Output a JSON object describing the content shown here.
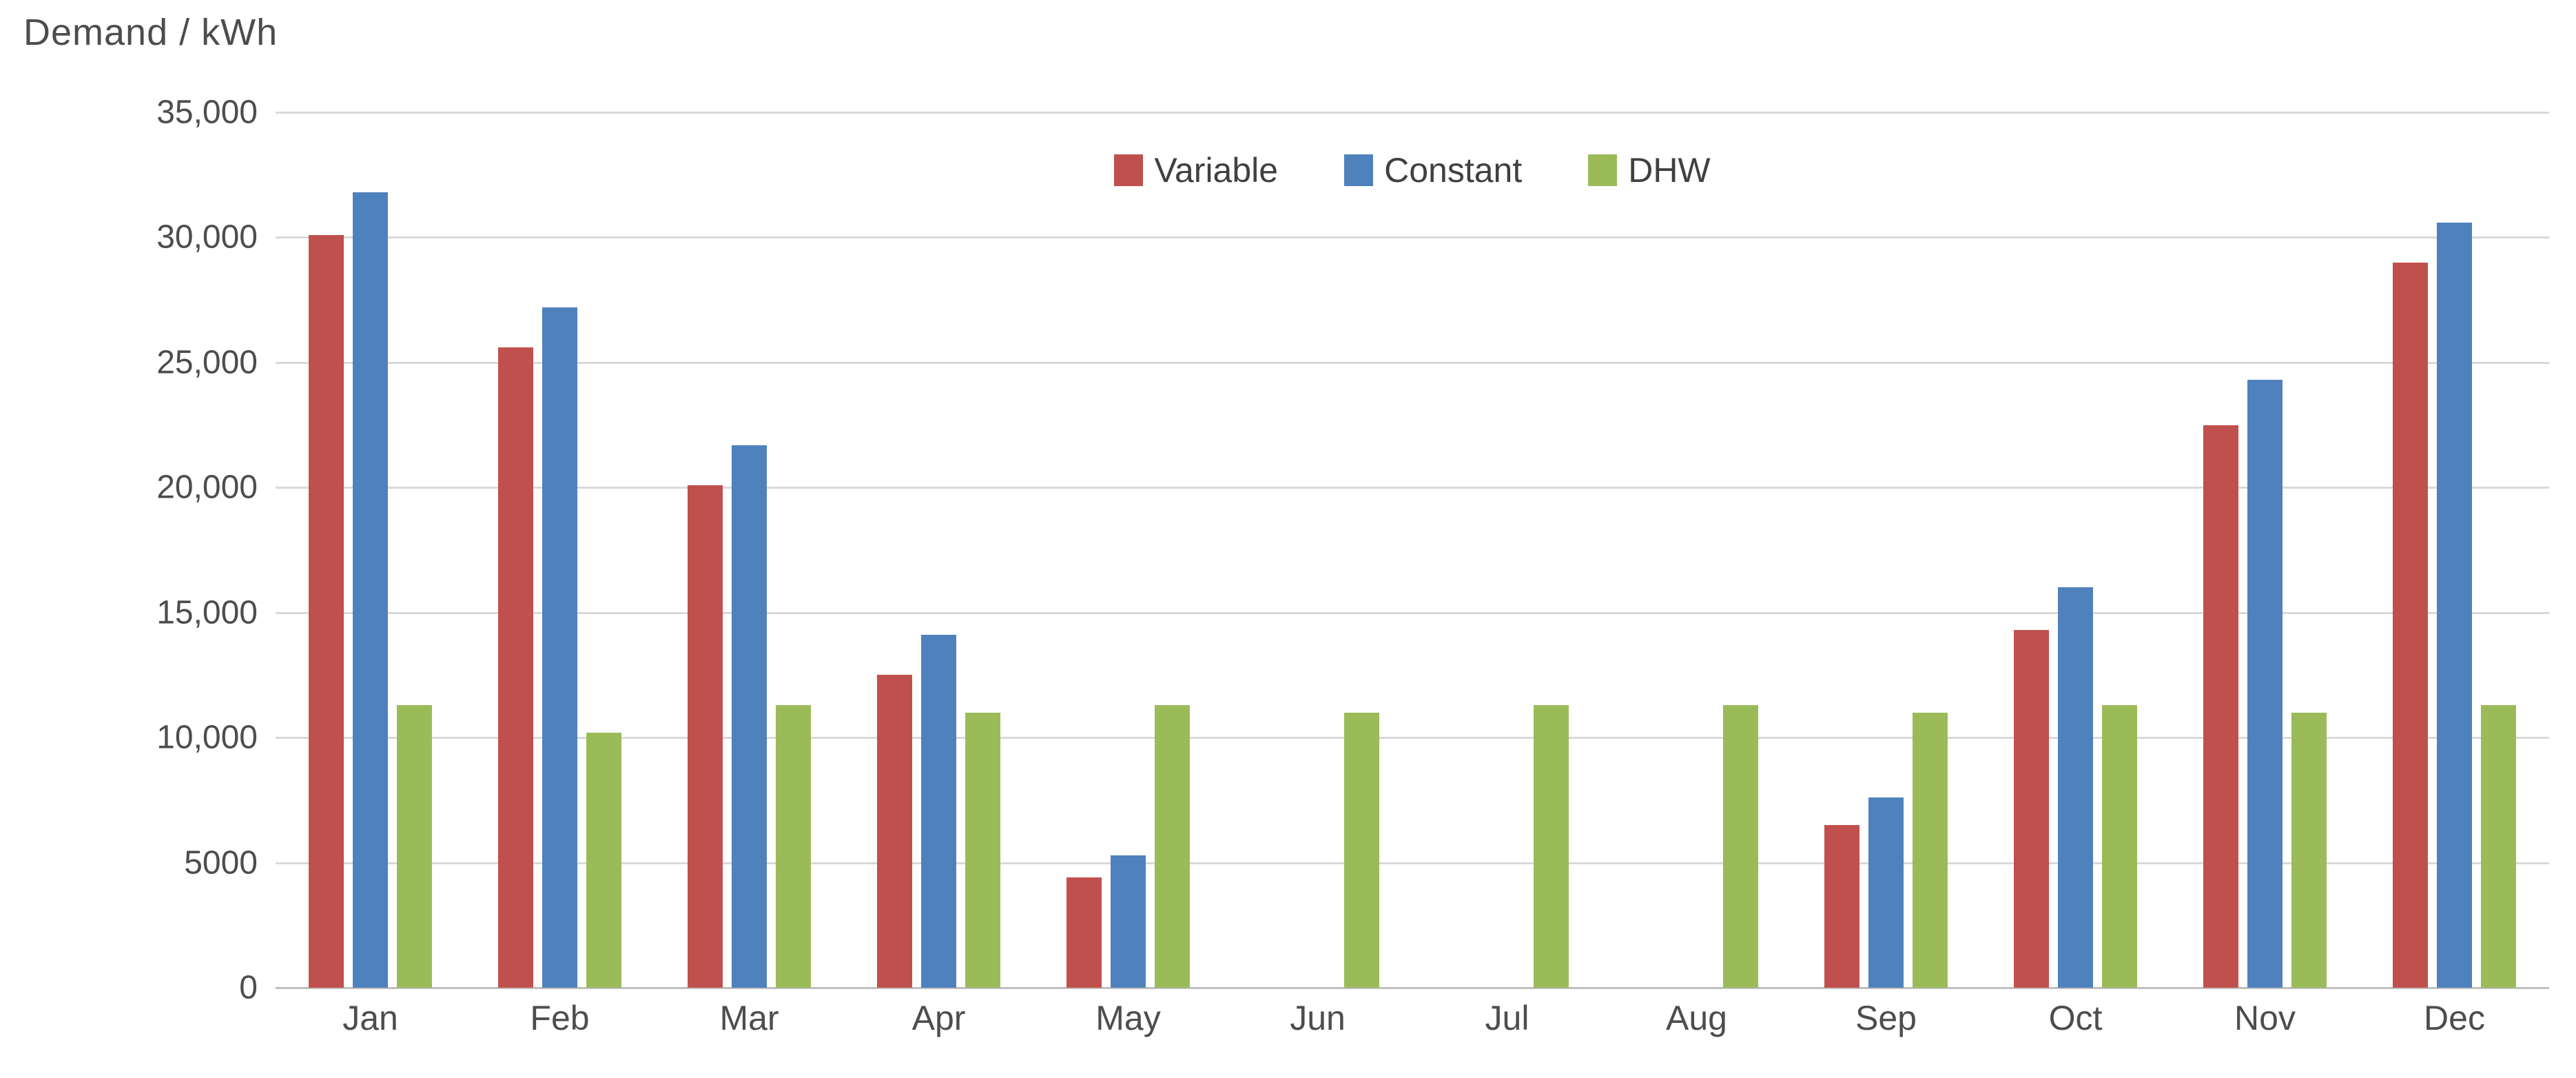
{
  "chart_data": {
    "type": "bar",
    "axis_title": "Demand / kWh",
    "categories": [
      "Jan",
      "Feb",
      "Mar",
      "Apr",
      "May",
      "Jun",
      "Jul",
      "Aug",
      "Sep",
      "Oct",
      "Nov",
      "Dec"
    ],
    "series": [
      {
        "name": "Variable",
        "color": "#C0504D",
        "values": [
          30100,
          25600,
          20100,
          12500,
          4400,
          0,
          0,
          0,
          6500,
          14300,
          22500,
          29000
        ]
      },
      {
        "name": "Constant",
        "color": "#4F81BD",
        "values": [
          31800,
          27200,
          21700,
          14100,
          5300,
          0,
          0,
          0,
          7600,
          16000,
          24300,
          30600
        ]
      },
      {
        "name": "DHW",
        "color": "#9BBB59",
        "values": [
          11300,
          10200,
          11300,
          11000,
          11300,
          11000,
          11300,
          11300,
          11000,
          11300,
          11000,
          11300
        ]
      }
    ],
    "yticks": [
      "35,000",
      "30,000",
      "25,000",
      "20,000",
      "15,000",
      "10,000",
      "5000",
      "0"
    ],
    "ylim": [
      0,
      35000
    ],
    "grid": true,
    "legend_position": "top-center",
    "colors": {
      "gridline": "#D9D9D9",
      "axis_line": "#BFBFBF",
      "text": "#4D4D4D",
      "background": "#FFFFFF"
    }
  }
}
